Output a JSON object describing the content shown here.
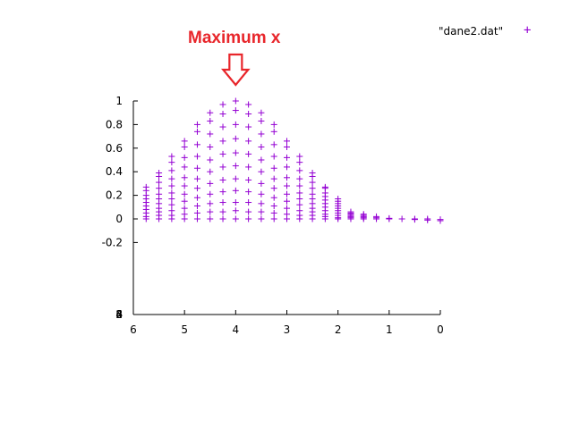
{
  "annotation": {
    "text": "Maximum x"
  },
  "legend": {
    "label": "\"dane2.dat\"",
    "marker": "+"
  },
  "colors": {
    "series": "#9400d3",
    "annotation": "#e8262b",
    "axis": "#000000"
  },
  "chart_data": {
    "type": "scatter",
    "title": "",
    "xlabel": "",
    "ylabel": "",
    "xlim": [
      6,
      0
    ],
    "ylim": [
      -0.82,
      1
    ],
    "x_ticks": [
      "6",
      "5",
      "4",
      "3",
      "2",
      "1",
      "0"
    ],
    "y_ticks": [
      "1",
      "0.8",
      "0.6",
      "0.4",
      "0.2",
      "0",
      "-0.2"
    ],
    "legend_position": "top-right",
    "grid": false,
    "series": [
      {
        "name": "\"dane2.dat\"",
        "columns": [
          {
            "x": 5.75,
            "y": [
              0.0,
              0.02,
              0.05,
              0.08,
              0.11,
              0.14,
              0.17,
              0.2,
              0.24,
              0.27
            ]
          },
          {
            "x": 5.5,
            "y": [
              0.0,
              0.03,
              0.06,
              0.09,
              0.13,
              0.17,
              0.21,
              0.26,
              0.31,
              0.36,
              0.39
            ]
          },
          {
            "x": 5.25,
            "y": [
              0.0,
              0.03,
              0.07,
              0.12,
              0.17,
              0.22,
              0.28,
              0.34,
              0.41,
              0.48,
              0.53
            ]
          },
          {
            "x": 5.0,
            "y": [
              0.0,
              0.04,
              0.09,
              0.15,
              0.21,
              0.28,
              0.35,
              0.44,
              0.52,
              0.61,
              0.66
            ]
          },
          {
            "x": 4.75,
            "y": [
              0.0,
              0.05,
              0.11,
              0.18,
              0.26,
              0.34,
              0.43,
              0.53,
              0.63,
              0.74,
              0.8
            ]
          },
          {
            "x": 4.5,
            "y": [
              0.0,
              0.06,
              0.13,
              0.21,
              0.3,
              0.4,
              0.5,
              0.61,
              0.72,
              0.83,
              0.9
            ]
          },
          {
            "x": 4.25,
            "y": [
              0.0,
              0.06,
              0.14,
              0.23,
              0.33,
              0.44,
              0.55,
              0.66,
              0.78,
              0.89,
              0.97
            ]
          },
          {
            "x": 4.0,
            "y": [
              0.0,
              0.07,
              0.14,
              0.24,
              0.34,
              0.45,
              0.56,
              0.68,
              0.8,
              0.92,
              1.0
            ]
          },
          {
            "x": 3.75,
            "y": [
              0.0,
              0.06,
              0.14,
              0.23,
              0.33,
              0.44,
              0.55,
              0.66,
              0.78,
              0.89,
              0.97
            ]
          },
          {
            "x": 3.5,
            "y": [
              0.0,
              0.06,
              0.13,
              0.21,
              0.3,
              0.4,
              0.5,
              0.61,
              0.72,
              0.83,
              0.9
            ]
          },
          {
            "x": 3.25,
            "y": [
              0.0,
              0.05,
              0.11,
              0.18,
              0.26,
              0.34,
              0.43,
              0.53,
              0.63,
              0.74,
              0.8
            ]
          },
          {
            "x": 3.0,
            "y": [
              0.0,
              0.04,
              0.09,
              0.15,
              0.21,
              0.28,
              0.35,
              0.44,
              0.52,
              0.61,
              0.66
            ]
          },
          {
            "x": 2.75,
            "y": [
              0.0,
              0.03,
              0.07,
              0.12,
              0.17,
              0.22,
              0.28,
              0.34,
              0.41,
              0.48,
              0.53
            ]
          },
          {
            "x": 2.5,
            "y": [
              0.0,
              0.03,
              0.06,
              0.09,
              0.13,
              0.17,
              0.21,
              0.26,
              0.31,
              0.36,
              0.39
            ]
          },
          {
            "x": 2.25,
            "y": [
              0.0,
              0.02,
              0.04,
              0.07,
              0.1,
              0.13,
              0.16,
              0.19,
              0.22,
              0.26,
              0.27
            ]
          },
          {
            "x": 2.0,
            "y": [
              0.0,
              0.01,
              0.03,
              0.05,
              0.07,
              0.09,
              0.11,
              0.13,
              0.15,
              0.17
            ]
          },
          {
            "x": 1.75,
            "y": [
              0.0,
              0.01,
              0.02,
              0.03,
              0.04,
              0.05,
              0.06
            ]
          },
          {
            "x": 1.5,
            "y": [
              0.0,
              0.01,
              0.02,
              0.03,
              0.04
            ]
          },
          {
            "x": 1.25,
            "y": [
              0.0,
              0.01,
              0.02
            ]
          },
          {
            "x": 1.0,
            "y": [
              0.0,
              0.005
            ]
          },
          {
            "x": 0.75,
            "y": [
              0.0
            ]
          },
          {
            "x": 0.5,
            "y": [
              -0.005,
              0.0
            ]
          },
          {
            "x": 0.25,
            "y": [
              -0.01,
              0.0
            ]
          },
          {
            "x": 0.0,
            "y": [
              -0.015,
              -0.005
            ]
          }
        ]
      }
    ]
  }
}
